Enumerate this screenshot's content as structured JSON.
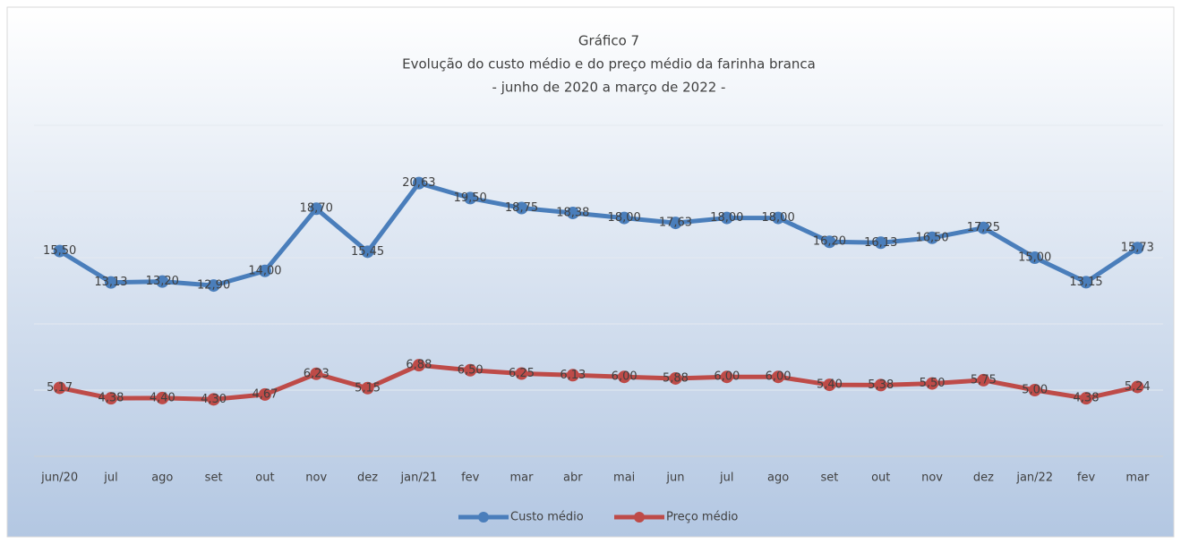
{
  "chart_data": {
    "type": "line",
    "title": [
      "Gráfico 7",
      "Evolução do custo médio e do preço médio da farinha branca",
      "- junho de 2020 a março de 2022 -"
    ],
    "categories": [
      "jun/20",
      "jul",
      "ago",
      "set",
      "out",
      "nov",
      "dez",
      "jan/21",
      "fev",
      "mar",
      "abr",
      "mai",
      "jun",
      "jul",
      "ago",
      "set",
      "out",
      "nov",
      "dez",
      "jan/22",
      "fev",
      "mar"
    ],
    "series": [
      {
        "name": "Custo médio",
        "color": "#4a7ebb",
        "values": [
          15.5,
          13.13,
          13.2,
          12.9,
          14.0,
          18.7,
          15.45,
          20.63,
          19.5,
          18.75,
          18.38,
          18.0,
          17.63,
          18.0,
          18.0,
          16.2,
          16.13,
          16.5,
          17.25,
          15.0,
          13.15,
          15.73
        ],
        "value_labels": [
          "15,50",
          "13,13",
          "13,20",
          "12,90",
          "14,00",
          "18,70",
          "15,45",
          "20,63",
          "19,50",
          "18,75",
          "18,38",
          "18,00",
          "17,63",
          "18,00",
          "18,00",
          "16,20",
          "16,13",
          "16,50",
          "17,25",
          "15,00",
          "13,15",
          "15,73"
        ]
      },
      {
        "name": "Preço médio",
        "color": "#be4b48",
        "values": [
          5.17,
          4.38,
          4.4,
          4.3,
          4.67,
          6.23,
          5.15,
          6.88,
          6.5,
          6.25,
          6.13,
          6.0,
          5.88,
          6.0,
          6.0,
          5.4,
          5.38,
          5.5,
          5.75,
          5.0,
          4.38,
          5.24
        ],
        "value_labels": [
          "5,17",
          "4,38",
          "4,40",
          "4,30",
          "4,67",
          "6,23",
          "5,15",
          "6,88",
          "6,50",
          "6,25",
          "6,13",
          "6,00",
          "5,88",
          "6,00",
          "6,00",
          "5,40",
          "5,38",
          "5,50",
          "5,75",
          "5,00",
          "4,38",
          "5,24"
        ]
      }
    ],
    "ylim": [
      0,
      25
    ],
    "yticks": [
      0,
      5,
      10,
      15,
      20,
      25
    ],
    "grid": true,
    "legend": "bottom"
  }
}
